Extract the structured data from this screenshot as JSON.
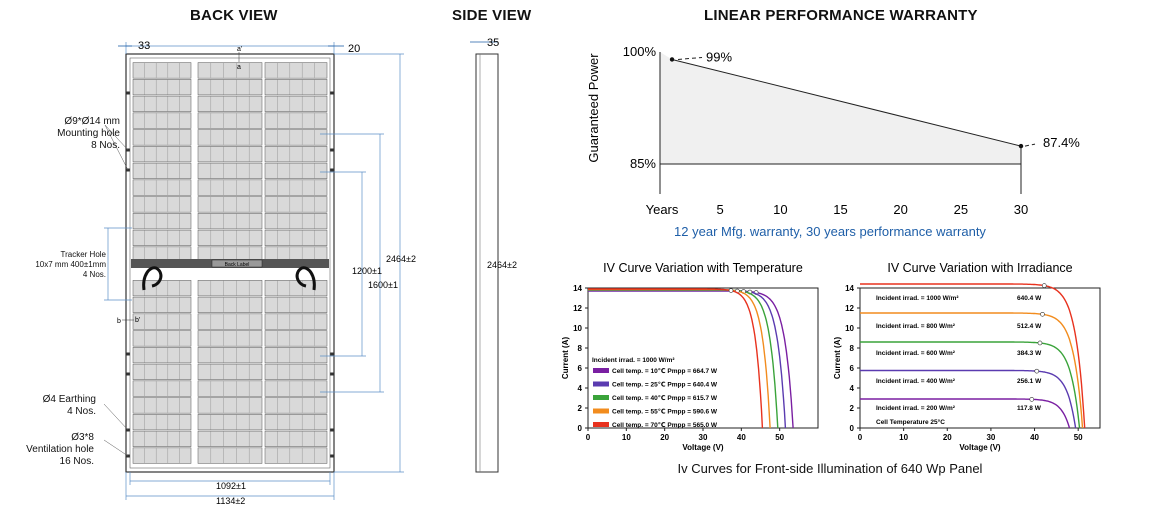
{
  "back_view": {
    "title": "BACK VIEW",
    "dim_top_left": "33",
    "dim_top_right": "20",
    "label_a_prime": "a'",
    "label_a": "a",
    "label_b": "b",
    "label_b_prime": "b'",
    "back_label": "Back Label",
    "mounting_hole": {
      "line1": "Ø9*Ø14 mm",
      "line2": "Mounting hole",
      "line3": "8 Nos."
    },
    "tracker_hole": {
      "line1": "Tracker Hole",
      "line2": "10x7 mm 400±1mm",
      "line3": "4 Nos."
    },
    "earthing": {
      "line1": "Ø4 Earthing",
      "line2": "4 Nos."
    },
    "ventilation": {
      "line1": "Ø3*8",
      "line2": "Ventilation hole",
      "line3": "16 Nos."
    },
    "dim_1200": "1200±1",
    "dim_1600": "1600±1",
    "dim_2464": "2464±2",
    "dim_1092": "1092±1",
    "dim_1134": "1134±2"
  },
  "side_view": {
    "title": "SIDE VIEW",
    "dim_35": "35",
    "dim_2464": "2464±2"
  },
  "warranty": {
    "title": "LINEAR PERFORMANCE WARRANTY",
    "y_axis_label": "Guaranteed Power",
    "y_ticks": [
      "100%",
      "85%"
    ],
    "x_axis_label": "Years",
    "x_ticks": [
      "5",
      "10",
      "15",
      "20",
      "25",
      "30"
    ],
    "start_label": "99%",
    "end_label": "87.4%",
    "caption": "12 year Mfg. warranty, 30 years performance warranty"
  },
  "colors": {
    "accent_blue": "#1f5fa8",
    "dim_line": "#5b8fc7",
    "warranty_fill": "#f0f0f0"
  },
  "chart_data": [
    {
      "type": "line",
      "title": "LINEAR PERFORMANCE WARRANTY",
      "xlabel": "Years",
      "ylabel": "Guaranteed Power",
      "xlim": [
        0,
        30
      ],
      "ylim": [
        85,
        100
      ],
      "series": [
        {
          "name": "Guaranteed Power",
          "x": [
            1,
            30
          ],
          "y": [
            99,
            87.4
          ]
        }
      ]
    },
    {
      "type": "line",
      "title": "IV Curve Variation with Temperature",
      "xlabel": "Voltage (V)",
      "ylabel": "Current (A)",
      "xlim": [
        0,
        60
      ],
      "ylim": [
        0,
        14
      ],
      "x_ticks": [
        "0",
        "10",
        "20",
        "30",
        "40",
        "50"
      ],
      "y_ticks": [
        "0",
        "2",
        "4",
        "6",
        "8",
        "10",
        "12",
        "14"
      ],
      "annotation": "Incident irrad. = 1000 W/m²",
      "series": [
        {
          "name": "Cell temp. = 10℃ Pmpp = 664.7 W",
          "color": "#7a1fa2",
          "isc": 13.7,
          "voc": 53.5
        },
        {
          "name": "Cell temp. = 25℃ Pmpp = 640.4 W",
          "color": "#5a3bb0",
          "isc": 13.75,
          "voc": 51.5
        },
        {
          "name": "Cell temp. = 40℃ Pmpp = 615.7 W",
          "color": "#3aa33a",
          "isc": 13.8,
          "voc": 49.5
        },
        {
          "name": "Cell temp. = 55℃ Pmpp = 590.6 W",
          "color": "#f28c1e",
          "isc": 13.85,
          "voc": 47.5
        },
        {
          "name": "Cell temp. = 70℃ Pmpp = 565.0 W",
          "color": "#e8321e",
          "isc": 13.9,
          "voc": 45.5
        }
      ]
    },
    {
      "type": "line",
      "title": "IV Curve Variation with Irradiance",
      "xlabel": "Voltage (V)",
      "ylabel": "Current (A)",
      "xlim": [
        0,
        55
      ],
      "ylim": [
        0,
        14
      ],
      "x_ticks": [
        "0",
        "10",
        "20",
        "30",
        "40",
        "50"
      ],
      "y_ticks": [
        "0",
        "2",
        "4",
        "6",
        "8",
        "10",
        "12",
        "14"
      ],
      "annotation": "Cell Temperature 25°C",
      "series": [
        {
          "name": "Incident irrad. = 1000 W/m²",
          "power": "640.4 W",
          "color": "#e8321e",
          "isc": 14.4,
          "voc": 51.5
        },
        {
          "name": "Incident irrad. = 800 W/m²",
          "power": "512.4 W",
          "color": "#f28c1e",
          "isc": 11.5,
          "voc": 51.0
        },
        {
          "name": "Incident irrad. = 600 W/m²",
          "power": "384.3 W",
          "color": "#3aa33a",
          "isc": 8.6,
          "voc": 50.3
        },
        {
          "name": "Incident irrad. = 400 W/m²",
          "power": "256.1 W",
          "color": "#5a3bb0",
          "isc": 5.75,
          "voc": 49.4
        },
        {
          "name": "Incident irrad. = 200 W/m²",
          "power": "117.8 W",
          "color": "#7a1fa2",
          "isc": 2.9,
          "voc": 48.0
        }
      ]
    }
  ],
  "footer_caption": "Iv Curves for Front-side Illumination of 640 Wp Panel"
}
